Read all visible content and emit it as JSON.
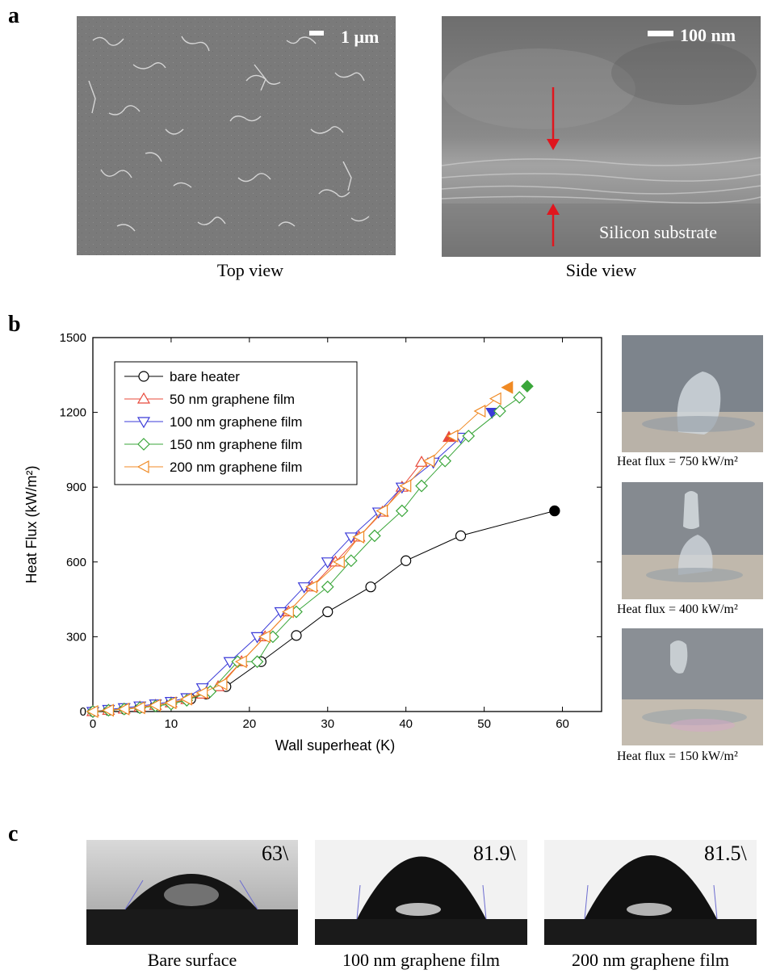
{
  "panels": {
    "a": {
      "letter": "a",
      "top_view": {
        "scale_label": "1 μm",
        "caption": "Top view"
      },
      "side_view": {
        "scale_label": "100 nm",
        "substrate_label": "Silicon substrate",
        "caption": "Side view"
      }
    },
    "b": {
      "letter": "b",
      "photo_captions": [
        "Heat flux = 750 kW/m²",
        "Heat flux = 400 kW/m²",
        "Heat flux = 150 kW/m²"
      ]
    },
    "c": {
      "letter": "c",
      "images": [
        {
          "angle": "63\\",
          "caption": "Bare surface"
        },
        {
          "angle": "81.9\\",
          "caption": "100 nm graphene film"
        },
        {
          "angle": "81.5\\",
          "caption": "200 nm graphene film"
        }
      ]
    }
  },
  "chart_data": {
    "type": "line",
    "xlabel": "Wall superheat (K)",
    "ylabel": "Heat Flux (kW/m²)",
    "xlim": [
      0,
      65
    ],
    "ylim": [
      0,
      1500
    ],
    "xticks": [
      0,
      10,
      20,
      30,
      40,
      50,
      60
    ],
    "yticks": [
      0,
      300,
      600,
      900,
      1200,
      1500
    ],
    "legend_position": "top-left",
    "grid": false,
    "series": [
      {
        "name": "bare heater",
        "color": "#000000",
        "marker": "circle",
        "x": [
          0,
          2,
          4,
          6,
          8,
          10,
          12.5,
          14.5,
          17,
          21.5,
          26,
          30,
          35.5,
          40,
          47,
          59
        ],
        "y": [
          0,
          5,
          10,
          15,
          25,
          35,
          50,
          70,
          100,
          200,
          305,
          400,
          500,
          605,
          705,
          805
        ],
        "chf": {
          "x": 59,
          "y": 805
        }
      },
      {
        "name": "50 nm graphene film",
        "color": "#e8493a",
        "marker": "triangle-up",
        "x": [
          0,
          2,
          4,
          6,
          8,
          10,
          12,
          14,
          16,
          19,
          22,
          25,
          28,
          31,
          34,
          37,
          39.5,
          42
        ],
        "y": [
          0,
          5,
          10,
          18,
          25,
          35,
          48,
          70,
          100,
          200,
          300,
          400,
          500,
          600,
          700,
          800,
          900,
          1000
        ],
        "chf": {
          "x": 45.5,
          "y": 1100
        }
      },
      {
        "name": "100 nm graphene film",
        "color": "#3b3bd8",
        "marker": "triangle-down",
        "x": [
          0,
          2,
          4,
          6,
          8,
          10,
          12,
          14,
          17.5,
          21,
          24,
          27,
          30,
          33,
          36.5,
          39.5,
          43.5,
          47
        ],
        "y": [
          0,
          8,
          15,
          22,
          30,
          40,
          55,
          95,
          200,
          300,
          400,
          500,
          600,
          700,
          800,
          900,
          1000,
          1100
        ],
        "chf": {
          "x": 51,
          "y": 1200
        }
      },
      {
        "name": "150 nm graphene film",
        "color": "#3aa63a",
        "marker": "diamond",
        "x": [
          0,
          2,
          4,
          6,
          8,
          10,
          12,
          15,
          18.5,
          21,
          23,
          26,
          30,
          33,
          36,
          39.5,
          42,
          45,
          48,
          52,
          54.5
        ],
        "y": [
          0,
          5,
          10,
          15,
          22,
          30,
          45,
          80,
          200,
          200,
          300,
          400,
          500,
          605,
          705,
          805,
          905,
          1005,
          1105,
          1205,
          1260
        ],
        "chf": {
          "x": 55.5,
          "y": 1305
        }
      },
      {
        "name": "200 nm graphene film",
        "color": "#f08a24",
        "marker": "triangle-left",
        "x": [
          0,
          2,
          4,
          6,
          8,
          10,
          12,
          14,
          16.5,
          19,
          22,
          25,
          28,
          31.5,
          34,
          37,
          40,
          43,
          46,
          49.5,
          51.5
        ],
        "y": [
          0,
          5,
          10,
          15,
          25,
          35,
          50,
          75,
          110,
          200,
          300,
          400,
          500,
          600,
          700,
          805,
          905,
          1005,
          1105,
          1205,
          1255
        ],
        "chf": {
          "x": 53,
          "y": 1300
        }
      }
    ]
  }
}
